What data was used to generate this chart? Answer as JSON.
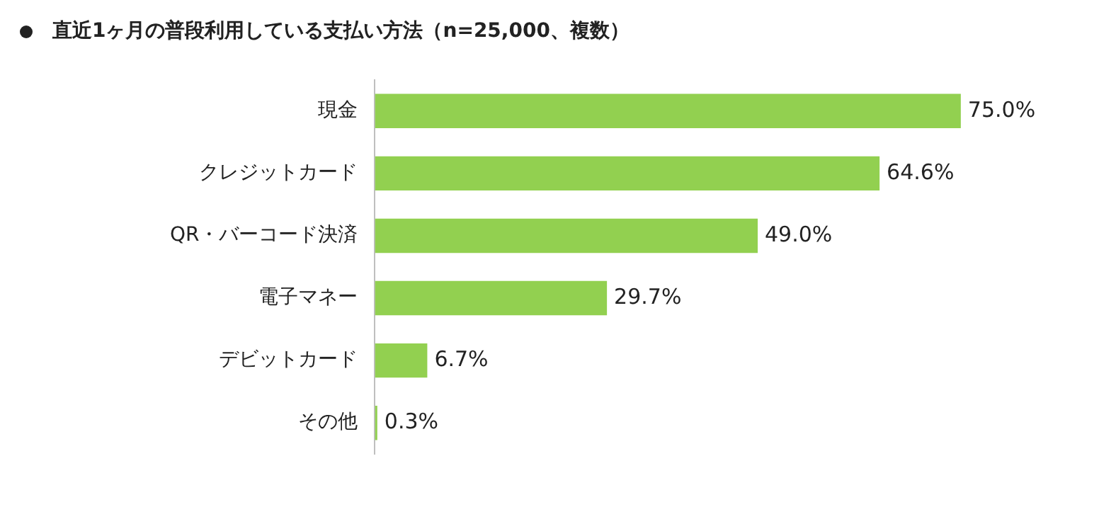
{
  "chart_data": {
    "type": "bar",
    "orientation": "horizontal",
    "title": "直近1ヶ月の普段利用している支払い方法（n=25,000、複数）",
    "categories": [
      "現金",
      "クレジットカード",
      "QR・バーコード決済",
      "電子マネー",
      "デビットカード",
      "その他"
    ],
    "values": [
      75.0,
      64.6,
      49.0,
      29.7,
      6.7,
      0.3
    ],
    "value_labels": [
      "75.0%",
      "64.6%",
      "49.0%",
      "29.7%",
      "6.7%",
      "0.3%"
    ],
    "color": "#92d050",
    "tick_labels": "y",
    "grid": false,
    "legend": false
  }
}
